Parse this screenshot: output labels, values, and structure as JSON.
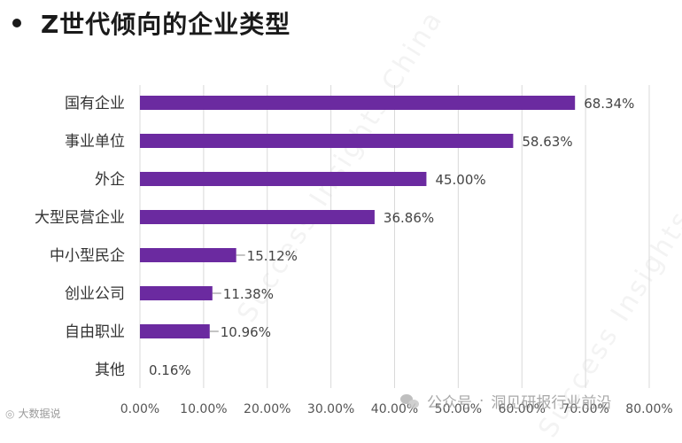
{
  "header": {
    "title": "Z世代倾向的企业类型"
  },
  "chart_data": {
    "type": "bar",
    "orientation": "horizontal",
    "categories": [
      "国有企业",
      "事业单位",
      "外企",
      "大型民营企业",
      "中小型民企",
      "创业公司",
      "自由职业",
      "其他"
    ],
    "values": [
      68.34,
      58.63,
      45.0,
      36.86,
      15.12,
      11.38,
      10.96,
      0.16
    ],
    "value_labels": [
      "68.34%",
      "58.63%",
      "45.00%",
      "36.86%",
      "15.12%",
      "11.38%",
      "10.96%",
      "0.16%"
    ],
    "xlim": [
      0,
      80
    ],
    "ticks": [
      0,
      10,
      20,
      30,
      40,
      50,
      60,
      70,
      80
    ],
    "tick_labels": [
      "0.00%",
      "10.00%",
      "20.00%",
      "30.00%",
      "40.00%",
      "50.00%",
      "60.00%",
      "70.00%",
      "80.00%"
    ],
    "grid": true,
    "bar_color": "#6b2aa0"
  },
  "footer": {
    "source_left": "大数据说",
    "channel_prefix": "公众号",
    "channel_name": "洞见研报行业前沿"
  },
  "watermark": {
    "text": "Success Insights China"
  }
}
